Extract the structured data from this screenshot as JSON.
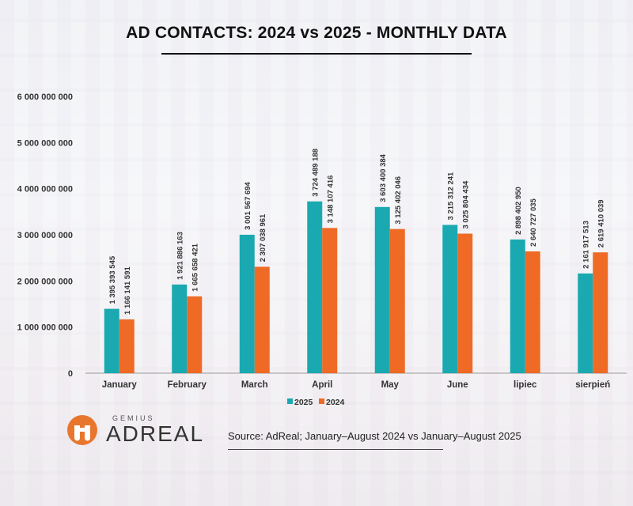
{
  "page": {
    "title": "AD CONTACTS: 2024 vs 2025 - MONTHLY DATA",
    "source": "Source: AdReal; January–August 2024 vs January–August 2025"
  },
  "logo": {
    "top_text": "GEMIUS",
    "main_text": "ADREAL",
    "accent_color": "#e8762d"
  },
  "chart_data": {
    "type": "bar",
    "title": "AD CONTACTS: 2024 vs 2025 - MONTHLY DATA",
    "xlabel": "",
    "ylabel": "",
    "ylim": [
      0,
      6000000000
    ],
    "yticks": [
      0,
      1000000000,
      2000000000,
      3000000000,
      4000000000,
      5000000000,
      6000000000
    ],
    "ytick_labels": [
      "0",
      "1 000 000 000",
      "2 000 000 000",
      "3 000 000 000",
      "4 000 000 000",
      "5 000 000 000",
      "6 000 000 000"
    ],
    "grid": false,
    "legend_position": "bottom",
    "categories": [
      "January",
      "February",
      "March",
      "April",
      "May",
      "June",
      "lipiec",
      "sierpień"
    ],
    "series": [
      {
        "name": "2025",
        "color": "#1aa9b0",
        "values": [
          1395393545,
          1921886163,
          3001567694,
          3724489188,
          3603400384,
          3215312241,
          2898402950,
          2161917513
        ],
        "labels": [
          "1 395 393 545",
          "1 921 886 163",
          "3 001 567 694",
          "3 724 489 188",
          "3 603 400 384",
          "3 215 312 241",
          "2 898 402 950",
          "2 161 917 513"
        ]
      },
      {
        "name": "2024",
        "color": "#ef6a25",
        "values": [
          1166141591,
          1665658421,
          2307038961,
          3148107416,
          3125402046,
          3025804434,
          2640727035,
          2619410039
        ],
        "labels": [
          "1 166 141 591",
          "1 665 658 421",
          "2 307 038 961",
          "3 148 107 416",
          "3 125 402 046",
          "3 025 804 434",
          "2 640 727 035",
          "2 619 410 039"
        ]
      }
    ]
  }
}
